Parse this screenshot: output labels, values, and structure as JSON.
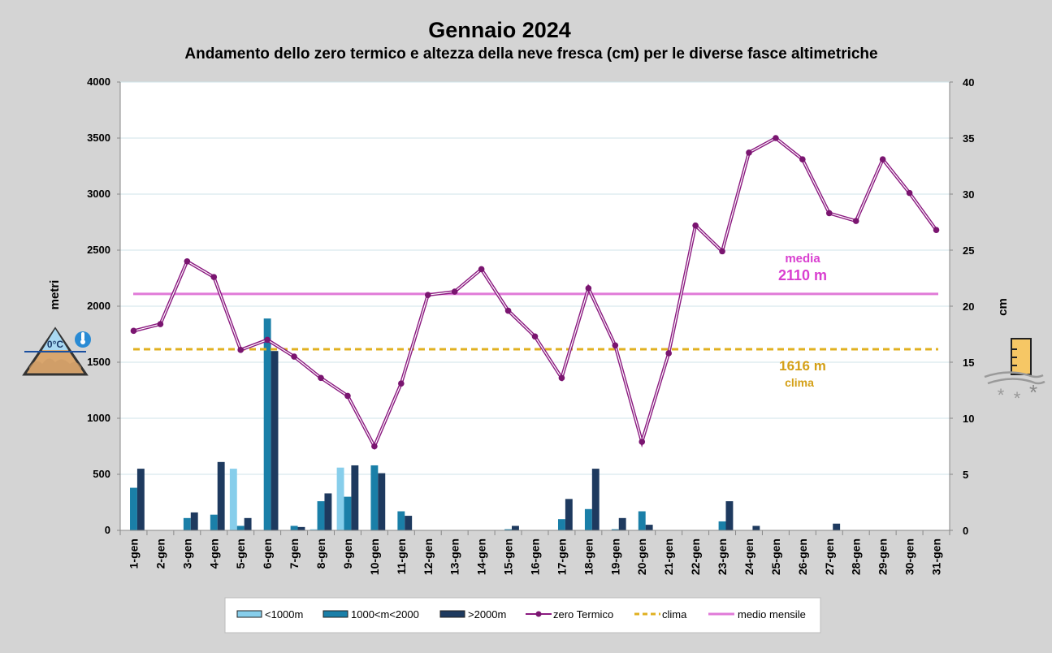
{
  "colors": {
    "lt1000": "#87ceeb",
    "mid": "#1a7fa8",
    "gt2000": "#1e3a5f",
    "zero_line": "#8b1a80",
    "zero_marker": "#7a1570",
    "clima": "#e0b020",
    "media": "#e07ad8",
    "clima_label": "#d4a017",
    "media_label": "#d93fd0"
  },
  "chart_data": {
    "type": "bar",
    "title": "Gennaio 2024",
    "subtitle": "Andamento dello zero termico e altezza della neve fresca (cm) per le diverse fasce altimetriche",
    "ylabel": "metri",
    "y2label": "cm",
    "ylim": [
      0,
      4000
    ],
    "yticks": [
      0,
      500,
      1000,
      1500,
      2000,
      2500,
      3000,
      3500,
      4000
    ],
    "y2lim": [
      0,
      40
    ],
    "y2ticks": [
      0,
      5,
      10,
      15,
      20,
      25,
      30,
      35,
      40
    ],
    "grid": true,
    "legend_position": "bottom",
    "categories": [
      "1-gen",
      "2-gen",
      "3-gen",
      "4-gen",
      "5-gen",
      "6-gen",
      "7-gen",
      "8-gen",
      "9-gen",
      "10-gen",
      "11-gen",
      "12-gen",
      "13-gen",
      "14-gen",
      "15-gen",
      "16-gen",
      "17-gen",
      "18-gen",
      "19-gen",
      "20-gen",
      "21-gen",
      "22-gen",
      "23-gen",
      "24-gen",
      "25-gen",
      "26-gen",
      "27-gen",
      "28-gen",
      "29-gen",
      "30-gen",
      "31-gen"
    ],
    "series": [
      {
        "name": "<1000m",
        "kind": "bar",
        "axis": "right",
        "color": "#87ceeb",
        "values": [
          0,
          0,
          0,
          0,
          5.5,
          0,
          0,
          0.1,
          5.6,
          0,
          0,
          0,
          0,
          0,
          0,
          0,
          0,
          0,
          0,
          0,
          0,
          0,
          0,
          0,
          0,
          0,
          0,
          0,
          0,
          0,
          0
        ]
      },
      {
        "name": "1000<m<2000",
        "kind": "bar",
        "axis": "right",
        "color": "#1a7fa8",
        "values": [
          3.8,
          0,
          1.1,
          1.4,
          0.4,
          18.9,
          0.4,
          2.6,
          3.0,
          5.8,
          1.7,
          0,
          0,
          0,
          0.1,
          0,
          1.0,
          1.9,
          0.1,
          1.7,
          0,
          0,
          0.8,
          0,
          0,
          0,
          0,
          0,
          0,
          0,
          0
        ]
      },
      {
        "name": ">2000m",
        "kind": "bar",
        "axis": "right",
        "color": "#1e3a5f",
        "values": [
          5.5,
          0,
          1.6,
          6.1,
          1.1,
          16.0,
          0.3,
          3.3,
          5.8,
          5.1,
          1.3,
          0,
          0,
          0,
          0.4,
          0,
          2.8,
          5.5,
          1.1,
          0.5,
          0,
          0,
          2.6,
          0.4,
          0,
          0,
          0.6,
          0,
          0,
          0,
          0
        ]
      },
      {
        "name": "zero Termico",
        "kind": "line",
        "axis": "left",
        "color": "#8b1a80",
        "values": [
          1780,
          1840,
          2400,
          2260,
          1610,
          1700,
          1550,
          1360,
          1200,
          750,
          1310,
          2100,
          2130,
          2330,
          1960,
          1730,
          1360,
          2160,
          1650,
          790,
          1580,
          2720,
          2490,
          3370,
          3500,
          3310,
          2830,
          2760,
          3310,
          3010,
          2680
        ]
      },
      {
        "name": "clima",
        "kind": "hline",
        "axis": "left",
        "color": "#e0b020",
        "value": 1616
      },
      {
        "name": "medio mensile",
        "kind": "hline",
        "axis": "left",
        "color": "#e07ad8",
        "value": 2110
      }
    ],
    "annotations": {
      "media_word": "media",
      "media_value": "2110 m",
      "clima_value": "1616 m",
      "clima_word": "clima"
    }
  },
  "icons": {
    "left": "mountain-freezing-level-icon",
    "left_label": "0°C",
    "right": "snow-gauge-icon"
  }
}
